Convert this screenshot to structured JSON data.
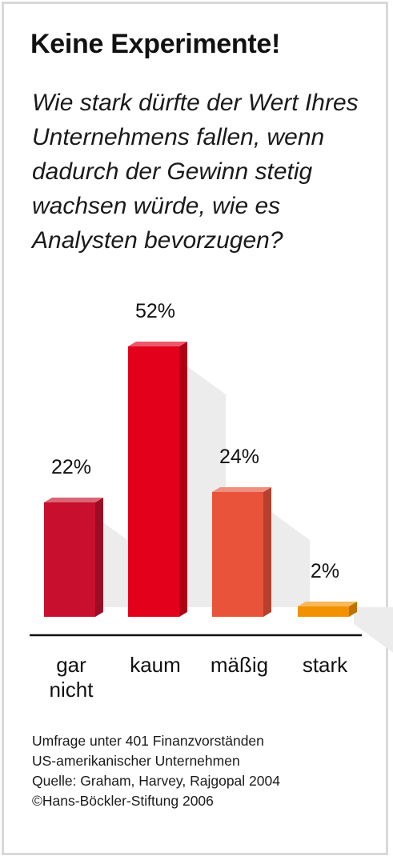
{
  "title": "Keine Experimente!",
  "subtitle": "Wie stark dürfte der Wert Ihres Unternehmens fallen, wenn dadurch der Gewinn stetig wachsen würde, wie es Analysten bevorzugen?",
  "footer": {
    "line1": "Umfrage unter 401 Finanzvorständen",
    "line2": "US-amerikanischer Unternehmen",
    "line3": "Quelle: Graham, Harvey, Rajgopal 2004",
    "line4": "©Hans-Böckler-Stiftung 2006"
  },
  "chart_data": {
    "type": "bar",
    "categories": [
      [
        "gar",
        "nicht"
      ],
      [
        "kaum"
      ],
      [
        "mäßig"
      ],
      [
        "stark"
      ]
    ],
    "values": [
      22,
      52,
      24,
      2
    ],
    "data_labels": [
      "22%",
      "52%",
      "24%",
      "2%"
    ],
    "unit": "%",
    "colors": [
      "#c8102e",
      "#e3001b",
      "#e8533a",
      "#f39200"
    ],
    "ylim": [
      0,
      52
    ],
    "grid": false,
    "legend": "none"
  }
}
